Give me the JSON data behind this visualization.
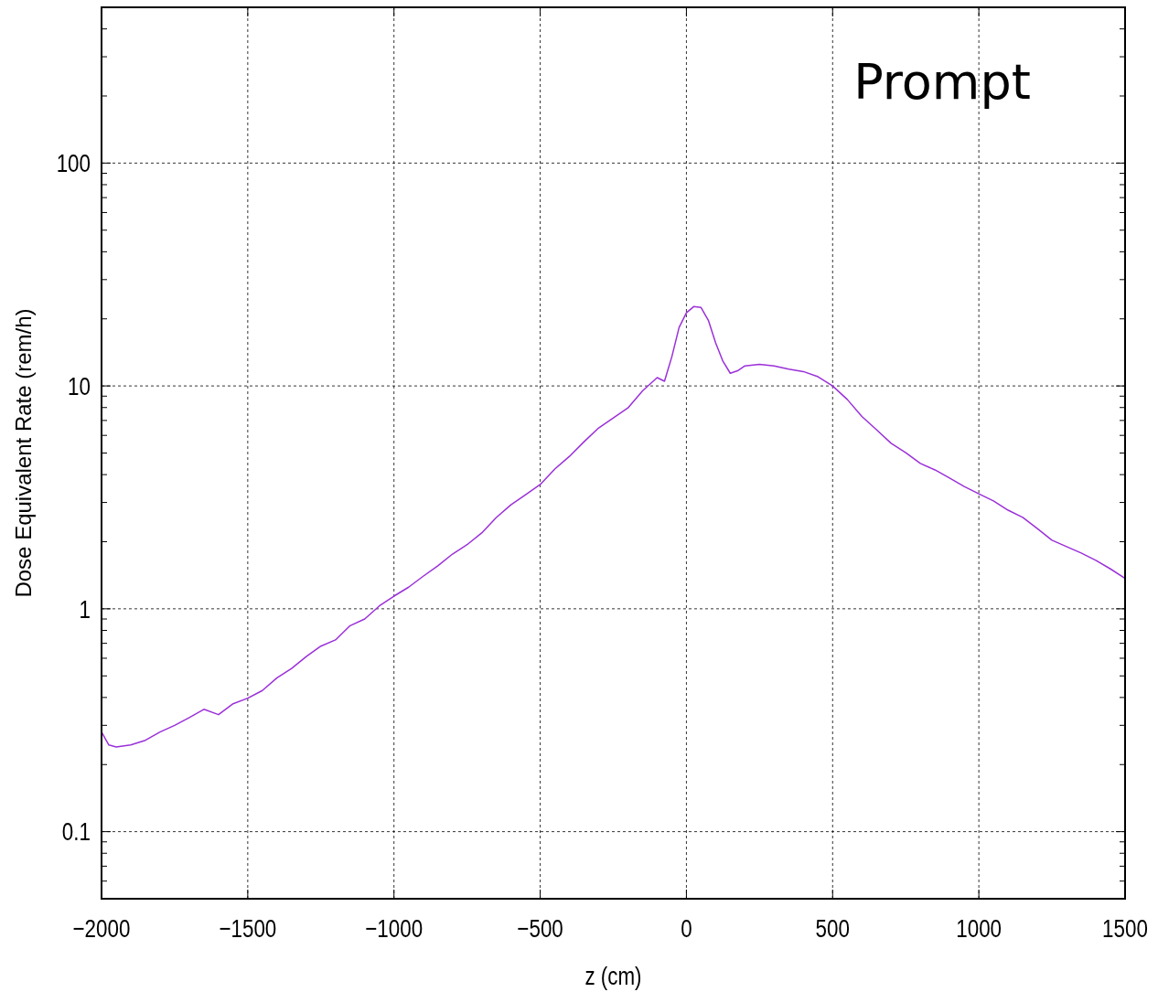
{
  "chart_data": {
    "type": "line",
    "xlabel": "z (cm)",
    "ylabel": "Dose Equivalent Rate (rem/h)",
    "annotations": [
      "Prompt"
    ],
    "log": "y",
    "grid": true,
    "marker": "none",
    "line_style": "solid",
    "xlim": [
      -2000,
      1500
    ],
    "xticks": [
      -2000,
      -1500,
      -1000,
      -500,
      0,
      500,
      1000,
      1500
    ],
    "ylim": [
      0.05,
      500
    ],
    "yticks": [
      {
        "value": 0.05,
        "label": null
      },
      {
        "value": 0.06,
        "label": null
      },
      {
        "value": 0.07,
        "label": null
      },
      {
        "value": 0.08,
        "label": null
      },
      {
        "value": 0.09,
        "label": null
      },
      0.1,
      {
        "value": 0.2,
        "label": null
      },
      {
        "value": 0.3,
        "label": null
      },
      {
        "value": 0.4,
        "label": null
      },
      {
        "value": 0.5,
        "label": null
      },
      {
        "value": 0.6,
        "label": null
      },
      {
        "value": 0.7,
        "label": null
      },
      {
        "value": 0.8,
        "label": null
      },
      {
        "value": 0.9,
        "label": null
      },
      1,
      {
        "value": 2,
        "label": null
      },
      {
        "value": 3,
        "label": null
      },
      {
        "value": 4,
        "label": null
      },
      {
        "value": 5,
        "label": null
      },
      {
        "value": 6,
        "label": null
      },
      {
        "value": 7,
        "label": null
      },
      {
        "value": 8,
        "label": null
      },
      {
        "value": 9,
        "label": null
      },
      10,
      {
        "value": 20,
        "label": null
      },
      {
        "value": 30,
        "label": null
      },
      {
        "value": 40,
        "label": null
      },
      {
        "value": 50,
        "label": null
      },
      {
        "value": 60,
        "label": null
      },
      {
        "value": 70,
        "label": null
      },
      {
        "value": 80,
        "label": null
      },
      {
        "value": 90,
        "label": null
      },
      100,
      {
        "value": 200,
        "label": null
      },
      {
        "value": 300,
        "label": null
      },
      {
        "value": 400,
        "label": null
      },
      {
        "value": 500,
        "label": null
      }
    ],
    "x": [
      -2000,
      -1975,
      -1950,
      -1900,
      -1850,
      -1800,
      -1750,
      -1700,
      -1650,
      -1600,
      -1550,
      -1500,
      -1450,
      -1400,
      -1350,
      -1300,
      -1250,
      -1200,
      -1150,
      -1100,
      -1050,
      -1000,
      -950,
      -900,
      -850,
      -800,
      -750,
      -700,
      -650,
      -600,
      -550,
      -500,
      -450,
      -400,
      -350,
      -300,
      -250,
      -200,
      -150,
      -100,
      -75,
      -50,
      -25,
      0,
      25,
      50,
      75,
      100,
      125,
      150,
      175,
      200,
      250,
      300,
      350,
      400,
      450,
      500,
      550,
      600,
      650,
      700,
      750,
      800,
      850,
      900,
      950,
      1000,
      1050,
      1100,
      1150,
      1200,
      1250,
      1300,
      1350,
      1400,
      1450,
      1500
    ],
    "series": [
      {
        "color": "#9b30d9",
        "values": [
          0.28,
          0.245,
          0.24,
          0.245,
          0.257,
          0.28,
          0.3,
          0.325,
          0.354,
          0.335,
          0.375,
          0.397,
          0.43,
          0.49,
          0.54,
          0.61,
          0.68,
          0.725,
          0.84,
          0.9,
          1.03,
          1.14,
          1.25,
          1.4,
          1.56,
          1.76,
          1.94,
          2.19,
          2.57,
          2.93,
          3.25,
          3.61,
          4.24,
          4.83,
          5.62,
          6.48,
          7.18,
          7.97,
          9.5,
          10.9,
          10.5,
          13.5,
          18.3,
          21.3,
          22.7,
          22.5,
          19.7,
          15.6,
          12.9,
          11.4,
          11.7,
          12.3,
          12.5,
          12.3,
          11.9,
          11.6,
          11.0,
          10.0,
          8.7,
          7.3,
          6.36,
          5.53,
          5.02,
          4.49,
          4.2,
          3.86,
          3.54,
          3.28,
          3.05,
          2.77,
          2.57,
          2.29,
          2.03,
          1.9,
          1.78,
          1.65,
          1.51,
          1.37
        ]
      }
    ]
  }
}
